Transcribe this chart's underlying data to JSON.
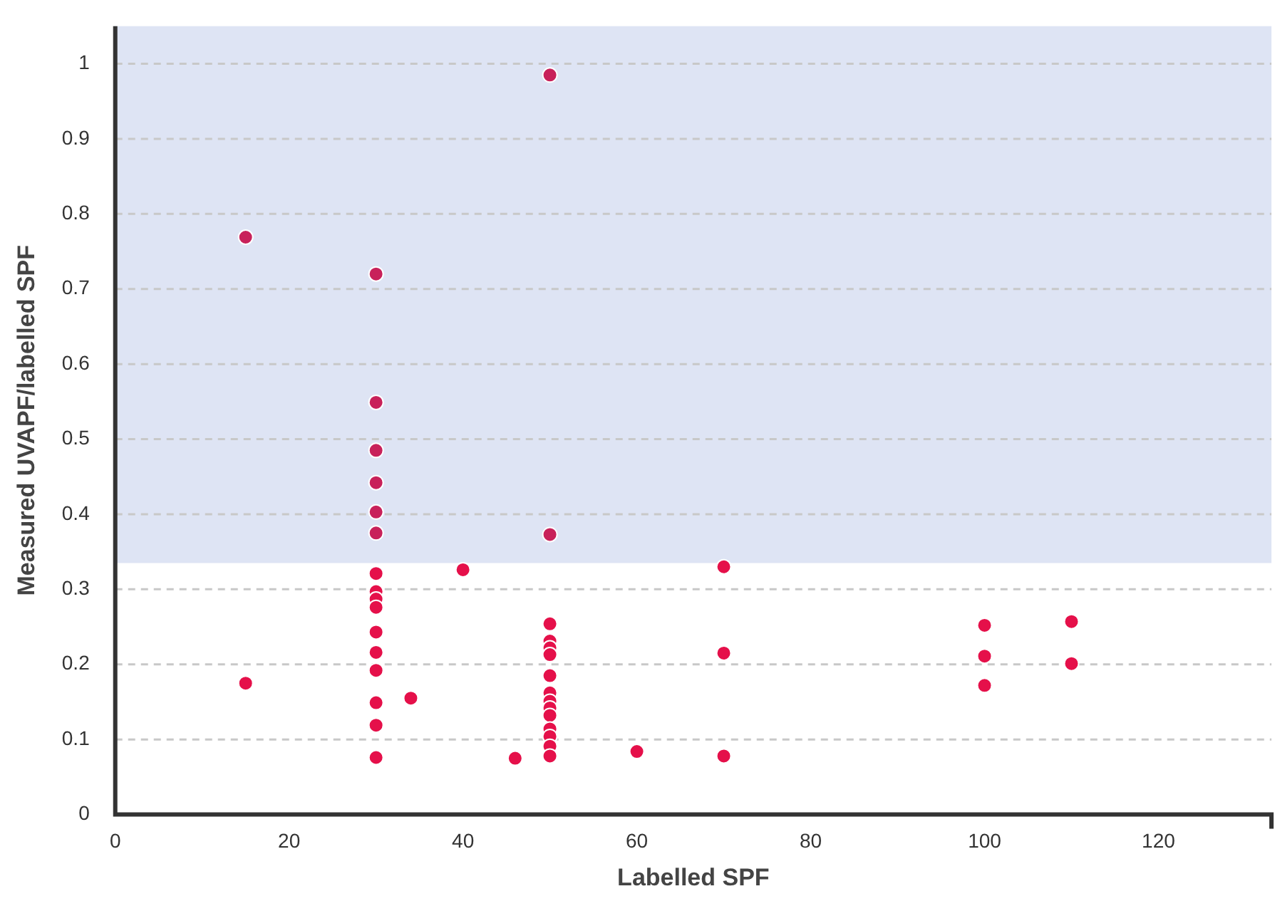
{
  "chart_data": {
    "type": "scatter",
    "xlabel": "Labelled SPF",
    "ylabel": "Measured UVAPF/labelled SPF",
    "xlim": [
      0,
      133
    ],
    "xticks": [
      0,
      20,
      40,
      60,
      80,
      100,
      120
    ],
    "ylim": [
      0,
      1.05
    ],
    "yticks": [
      0,
      0.1,
      0.2,
      0.3,
      0.4,
      0.5,
      0.6,
      0.7,
      0.8,
      0.9,
      1
    ],
    "grid": "y",
    "legend": false,
    "marker": "circle",
    "bands": [
      {
        "axis": "y",
        "from": 0.335,
        "to": 1.05,
        "color": "#dee4f4"
      }
    ],
    "series": [
      {
        "color": "#c8215a",
        "x": [
          15,
          30,
          30,
          30,
          30,
          30,
          30,
          50,
          50
        ],
        "values": [
          0.769,
          0.72,
          0.549,
          0.485,
          0.442,
          0.403,
          0.375,
          0.985,
          0.373
        ]
      },
      {
        "color": "#e5104a",
        "x": [
          15,
          30,
          30,
          30,
          30,
          30,
          30,
          30,
          30,
          30,
          30,
          34,
          40,
          46,
          50,
          50,
          50,
          50,
          50,
          50,
          50,
          50,
          50,
          50,
          50,
          50,
          50,
          60,
          70,
          70,
          70,
          100,
          100,
          100,
          110,
          110
        ],
        "values": [
          0.175,
          0.321,
          0.297,
          0.287,
          0.276,
          0.243,
          0.216,
          0.192,
          0.149,
          0.119,
          0.076,
          0.155,
          0.326,
          0.075,
          0.254,
          0.231,
          0.222,
          0.213,
          0.185,
          0.162,
          0.151,
          0.142,
          0.132,
          0.114,
          0.104,
          0.091,
          0.078,
          0.084,
          0.33,
          0.215,
          0.078,
          0.252,
          0.211,
          0.172,
          0.257,
          0.201
        ]
      }
    ]
  }
}
